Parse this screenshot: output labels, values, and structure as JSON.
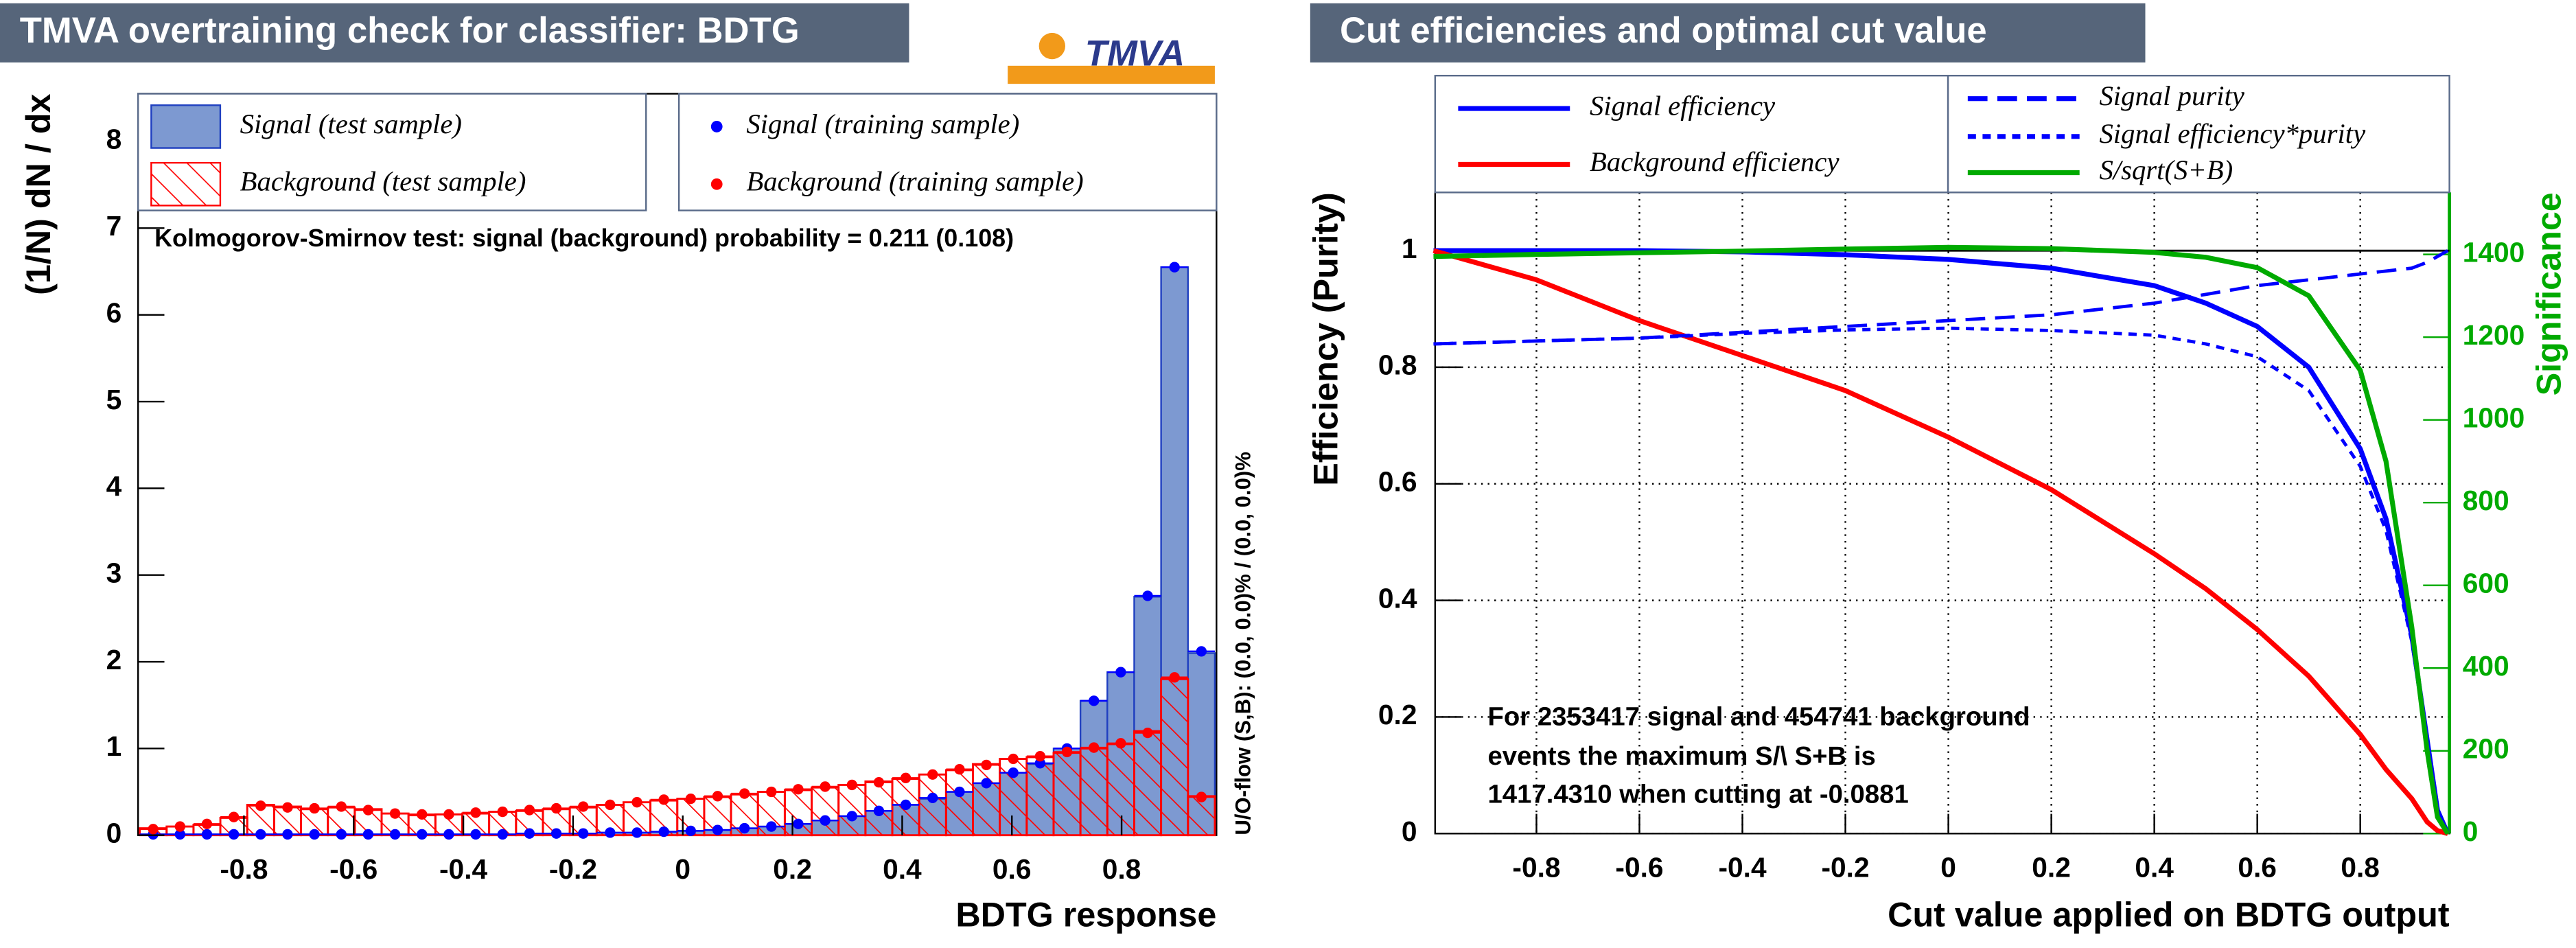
{
  "chart_data": [
    {
      "type": "histogram",
      "title": "TMVA overtraining check for classifier: BDTG",
      "logo": "TMVA",
      "x_label": "BDTG response",
      "y_label": "(1/N) dN / dx",
      "annotation": "Kolmogorov-Smirnov test: signal (background) probability = 0.211 (0.108)",
      "overflow_note": "U/O-flow (S,B): (0.0, 0.0)% / (0.0, 0.0)%",
      "bins": [
        -0.99,
        -0.941,
        -0.892,
        -0.843,
        -0.794,
        -0.745,
        -0.696,
        -0.647,
        -0.598,
        -0.549,
        -0.5,
        -0.451,
        -0.402,
        -0.353,
        -0.304,
        -0.255,
        -0.206,
        -0.157,
        -0.108,
        -0.059,
        -0.01,
        0.039,
        0.088,
        0.137,
        0.186,
        0.235,
        0.284,
        0.333,
        0.382,
        0.431,
        0.48,
        0.529,
        0.578,
        0.627,
        0.676,
        0.725,
        0.774,
        0.823,
        0.872,
        0.921,
        0.97
      ],
      "series": [
        {
          "name": "Signal (test sample)",
          "color": "#7d99d1",
          "style": "fill",
          "values": [
            0.01,
            0.01,
            0.01,
            0.01,
            0.01,
            0.01,
            0.01,
            0.01,
            0.01,
            0.01,
            0.01,
            0.01,
            0.01,
            0.01,
            0.02,
            0.02,
            0.02,
            0.03,
            0.03,
            0.04,
            0.05,
            0.06,
            0.08,
            0.1,
            0.13,
            0.17,
            0.22,
            0.28,
            0.35,
            0.42,
            0.5,
            0.6,
            0.72,
            0.82,
            1.0,
            1.55,
            1.88,
            2.75,
            6.55,
            2.1
          ]
        },
        {
          "name": "Background (test sample)",
          "color": "#ff0000",
          "style": "hatch",
          "values": [
            0.08,
            0.1,
            0.12,
            0.2,
            0.35,
            0.33,
            0.3,
            0.32,
            0.3,
            0.25,
            0.23,
            0.24,
            0.25,
            0.27,
            0.28,
            0.3,
            0.32,
            0.35,
            0.38,
            0.4,
            0.42,
            0.44,
            0.47,
            0.5,
            0.52,
            0.55,
            0.58,
            0.62,
            0.65,
            0.7,
            0.75,
            0.82,
            0.88,
            0.9,
            0.95,
            1.0,
            1.05,
            1.2,
            1.8,
            0.45
          ]
        },
        {
          "name": "Signal (training sample)",
          "color": "#0000ff",
          "style": "points",
          "values": [
            0.01,
            0.01,
            0.01,
            0.01,
            0.01,
            0.01,
            0.01,
            0.01,
            0.01,
            0.01,
            0.01,
            0.01,
            0.01,
            0.01,
            0.02,
            0.02,
            0.02,
            0.03,
            0.03,
            0.04,
            0.05,
            0.06,
            0.08,
            0.1,
            0.13,
            0.17,
            0.22,
            0.28,
            0.35,
            0.43,
            0.5,
            0.6,
            0.72,
            0.83,
            1.0,
            1.55,
            1.88,
            2.76,
            6.55,
            2.12
          ]
        },
        {
          "name": "Background (training sample)",
          "color": "#ff0000",
          "style": "points",
          "values": [
            0.07,
            0.1,
            0.13,
            0.21,
            0.34,
            0.32,
            0.31,
            0.33,
            0.29,
            0.25,
            0.24,
            0.24,
            0.26,
            0.27,
            0.29,
            0.31,
            0.33,
            0.35,
            0.38,
            0.41,
            0.42,
            0.45,
            0.48,
            0.5,
            0.53,
            0.56,
            0.58,
            0.61,
            0.66,
            0.7,
            0.76,
            0.81,
            0.88,
            0.91,
            0.96,
            1.01,
            1.06,
            1.18,
            1.82,
            0.44
          ]
        }
      ],
      "xlim": [
        -0.99,
        0.97
      ],
      "ylim": [
        0,
        8.55
      ],
      "xticks": [
        -0.8,
        -0.6,
        -0.4,
        -0.2,
        0,
        0.2,
        0.4,
        0.6,
        0.8
      ],
      "yticks": [
        0,
        1,
        2,
        3,
        4,
        5,
        6,
        7,
        8
      ]
    },
    {
      "type": "line",
      "title": "Cut efficiencies and optimal cut value",
      "x_label": "Cut value applied on BDTG output",
      "y_label": "Efficiency (Purity)",
      "y2_label": "Significance",
      "annotation": [
        "For 2353417 signal and 454741 background",
        "events the maximum S/\\ S+B is",
        "1417.4310 when cutting at -0.0881"
      ],
      "reference_line": 1,
      "grid": true,
      "x": [
        -1,
        -0.8,
        -0.6,
        -0.4,
        -0.2,
        0,
        0.2,
        0.4,
        0.5,
        0.6,
        0.7,
        0.8,
        0.85,
        0.9,
        0.93,
        0.95,
        0.97
      ],
      "series": [
        {
          "name": "Signal efficiency",
          "color": "#0000ff",
          "style": "solid",
          "values": [
            1,
            1,
            1,
            0.998,
            0.993,
            0.985,
            0.97,
            0.94,
            0.91,
            0.87,
            0.8,
            0.66,
            0.54,
            0.34,
            0.16,
            0.04,
            0
          ]
        },
        {
          "name": "Background efficiency",
          "color": "#ff0000",
          "style": "solid",
          "values": [
            1,
            0.95,
            0.88,
            0.82,
            0.76,
            0.68,
            0.59,
            0.48,
            0.42,
            0.35,
            0.27,
            0.17,
            0.11,
            0.06,
            0.02,
            0.005,
            0
          ]
        },
        {
          "name": "Signal purity",
          "color": "#0000ff",
          "style": "long-dash",
          "values": [
            0.84,
            0.845,
            0.85,
            0.86,
            0.87,
            0.88,
            0.89,
            0.91,
            0.925,
            0.94,
            0.95,
            0.96,
            0.965,
            0.97,
            0.98,
            0.99,
            1
          ]
        },
        {
          "name": "Signal efficiency*purity",
          "color": "#0000ff",
          "style": "short-dash",
          "values": [
            0.84,
            0.845,
            0.85,
            0.858,
            0.864,
            0.867,
            0.863,
            0.855,
            0.84,
            0.818,
            0.76,
            0.63,
            0.52,
            0.33,
            0.157,
            0.04,
            0
          ]
        },
        {
          "name": "S/sqrt(S+B)",
          "color": "#00aa00",
          "style": "solid",
          "axis": "y2",
          "values": [
            1395,
            1400,
            1404,
            1408,
            1413,
            1417,
            1414,
            1405,
            1393,
            1368,
            1300,
            1120,
            900,
            500,
            200,
            40,
            0
          ]
        }
      ],
      "xlim": [
        -1,
        0.97
      ],
      "ylim": [
        0,
        1.1
      ],
      "y2lim": [
        0,
        1550
      ],
      "xticks": [
        -0.8,
        -0.6,
        -0.4,
        -0.2,
        0,
        0.2,
        0.4,
        0.6,
        0.8
      ],
      "yticks": [
        0,
        0.2,
        0.4,
        0.6,
        0.8,
        1
      ],
      "y2ticks": [
        0,
        200,
        400,
        600,
        800,
        1000,
        1200,
        1400
      ]
    }
  ]
}
